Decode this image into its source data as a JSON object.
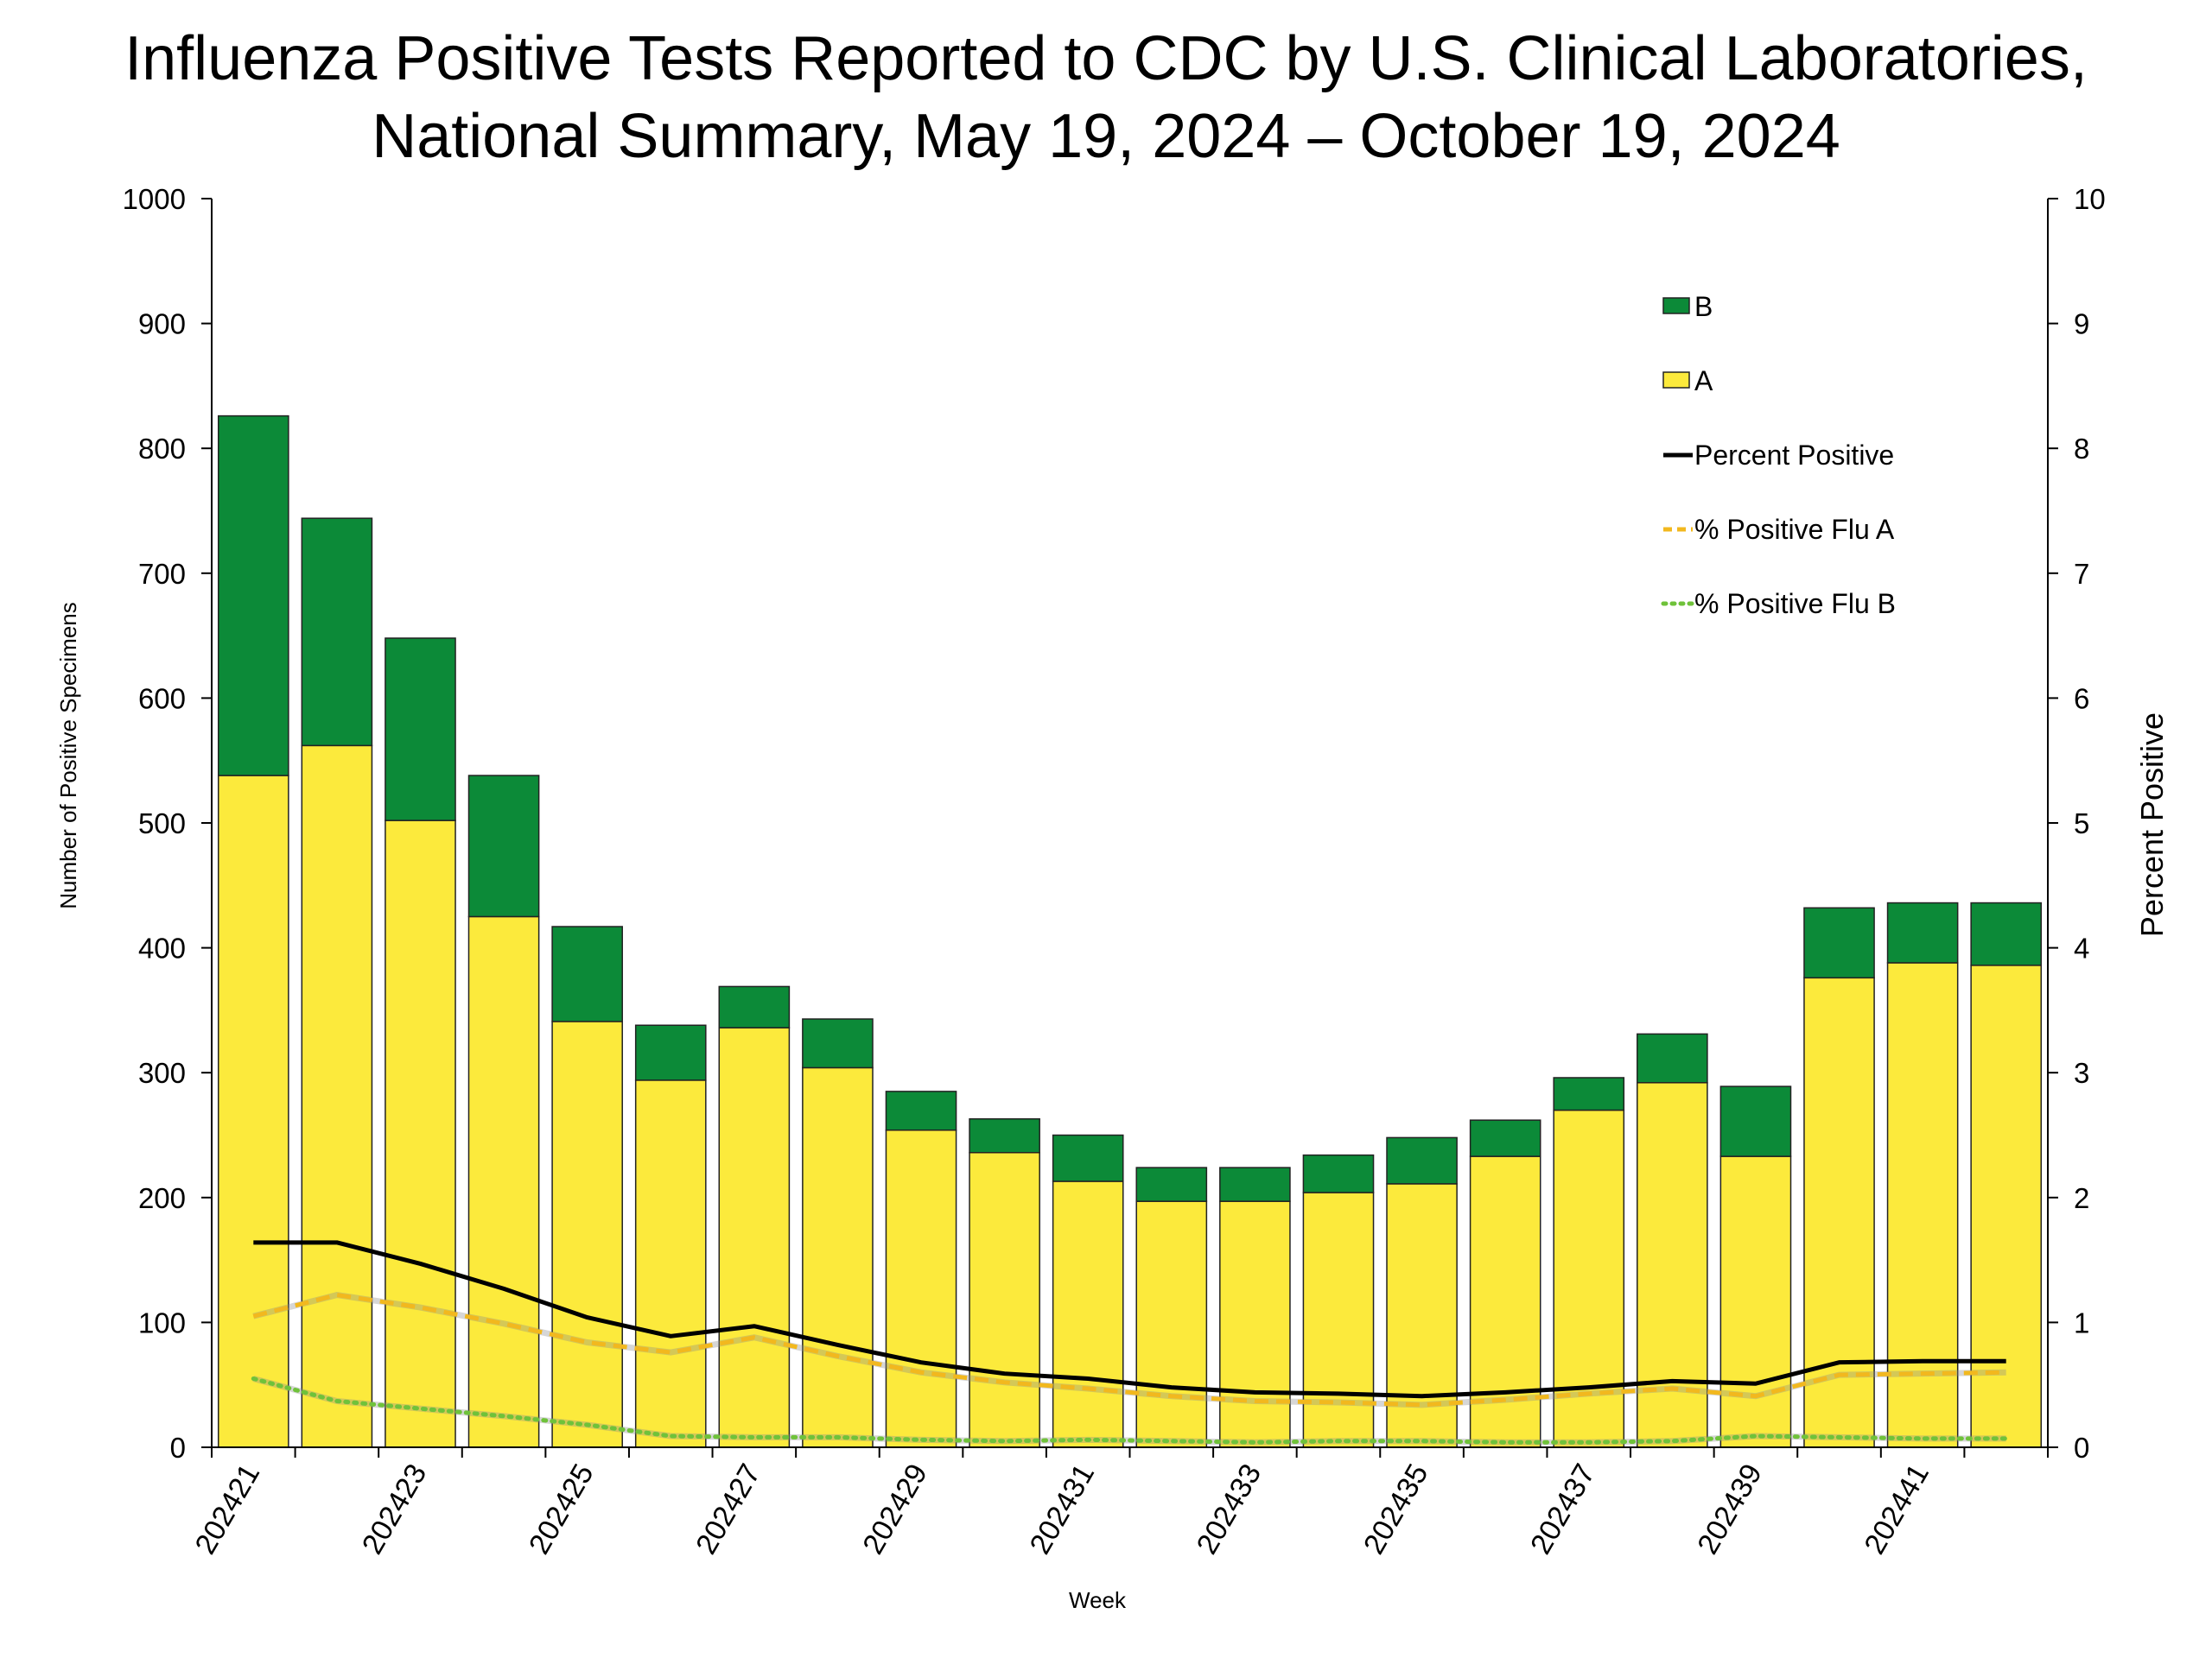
{
  "chart_data": {
    "type": "bar",
    "title": "Influenza Positive Tests Reported to CDC by U.S. Clinical Laboratories,",
    "subtitle": "National Summary, May 19, 2024 – October 19, 2024",
    "xlabel": "Week",
    "ylabel": "Number of Positive Specimens",
    "y2label": "Percent Positive",
    "ylim": [
      0,
      1000
    ],
    "y2lim": [
      0,
      10
    ],
    "yticks": [
      "0",
      "100",
      "200",
      "300",
      "400",
      "500",
      "600",
      "700",
      "800",
      "900",
      "1000"
    ],
    "y2ticks": [
      "0",
      "1",
      "2",
      "3",
      "4",
      "5",
      "6",
      "7",
      "8",
      "9",
      "10"
    ],
    "stacked": true,
    "grid": false,
    "legend_position": "top-right",
    "categories": [
      "202421",
      "202422",
      "202423",
      "202424",
      "202425",
      "202426",
      "202427",
      "202428",
      "202429",
      "202430",
      "202431",
      "202432",
      "202433",
      "202434",
      "202435",
      "202436",
      "202437",
      "202438",
      "202439",
      "202440",
      "202441",
      "202442"
    ],
    "x_tick_labels": [
      "202421",
      "",
      "202423",
      "",
      "202425",
      "",
      "202427",
      "",
      "202429",
      "",
      "202431",
      "",
      "202433",
      "",
      "202435",
      "",
      "202437",
      "",
      "202439",
      "",
      "202441",
      ""
    ],
    "series": [
      {
        "name": "A",
        "kind": "bar",
        "axis": "left",
        "color": "#FCEA3C",
        "values": [
          538,
          562,
          502,
          425,
          341,
          294,
          336,
          304,
          254,
          236,
          213,
          197,
          197,
          204,
          211,
          233,
          270,
          292,
          233,
          376,
          388,
          386
        ]
      },
      {
        "name": "B",
        "kind": "bar",
        "axis": "left",
        "color": "#0C8A38",
        "values": [
          288,
          182,
          146,
          113,
          76,
          44,
          33,
          39,
          31,
          27,
          37,
          27,
          27,
          30,
          37,
          29,
          26,
          39,
          56,
          56,
          48,
          50
        ]
      },
      {
        "name": "Percent Positive",
        "kind": "line",
        "axis": "right",
        "color": "#000000",
        "style": "solid",
        "values": [
          1.64,
          1.64,
          1.47,
          1.27,
          1.04,
          0.89,
          0.97,
          0.82,
          0.68,
          0.59,
          0.55,
          0.48,
          0.44,
          0.43,
          0.41,
          0.44,
          0.48,
          0.53,
          0.51,
          0.68,
          0.69,
          0.69
        ]
      },
      {
        "name": "% Positive Flu A",
        "kind": "line",
        "axis": "right",
        "color": "#F2B81E",
        "style": "dashed",
        "values": [
          1.05,
          1.22,
          1.12,
          0.99,
          0.84,
          0.76,
          0.88,
          0.73,
          0.6,
          0.52,
          0.47,
          0.41,
          0.37,
          0.36,
          0.34,
          0.38,
          0.43,
          0.47,
          0.41,
          0.58,
          0.59,
          0.6
        ]
      },
      {
        "name": "% Positive Flu B",
        "kind": "line",
        "axis": "right",
        "color": "#6FC23A",
        "style": "dotted",
        "values": [
          0.55,
          0.37,
          0.31,
          0.25,
          0.18,
          0.09,
          0.08,
          0.08,
          0.06,
          0.05,
          0.06,
          0.05,
          0.04,
          0.05,
          0.05,
          0.04,
          0.04,
          0.05,
          0.09,
          0.08,
          0.07,
          0.07
        ]
      }
    ],
    "legend": [
      {
        "label": "B",
        "marker": "box",
        "color": "#0C8A38"
      },
      {
        "label": "A",
        "marker": "box",
        "color": "#FCEA3C"
      },
      {
        "label": "Percent Positive",
        "marker": "solid-line",
        "color": "#000000"
      },
      {
        "label": "% Positive Flu A",
        "marker": "dashed-line",
        "color": "#F2B81E"
      },
      {
        "label": "% Positive Flu B",
        "marker": "dotted-line",
        "color": "#6FC23A"
      }
    ]
  }
}
